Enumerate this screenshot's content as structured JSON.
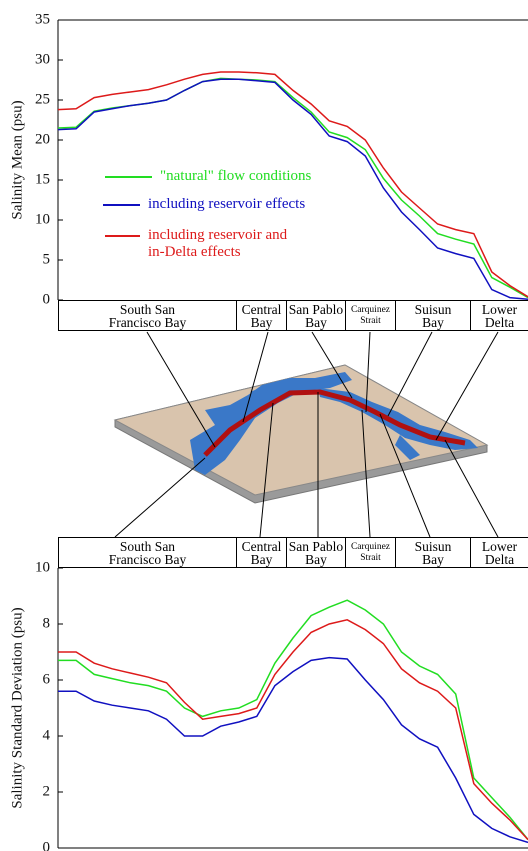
{
  "chart_data": [
    {
      "type": "line",
      "y_label": "Salinity Mean (psu)",
      "categories": [
        null,
        null,
        null,
        null,
        null,
        null,
        null,
        null,
        null,
        null,
        null,
        null,
        null,
        null,
        null,
        null,
        null,
        null,
        null,
        null,
        null,
        null,
        null,
        null,
        null,
        null,
        null
      ],
      "ylim": [
        0,
        35
      ],
      "yticks": [
        0,
        5,
        10,
        15,
        20,
        25,
        30,
        35
      ],
      "series": [
        {
          "name": "\"natural\" flow conditions",
          "color": "#22dd22",
          "values": [
            21.5,
            21.6,
            23.6,
            24.0,
            24.3,
            24.6,
            25.0,
            26.2,
            27.3,
            27.7,
            27.6,
            27.5,
            27.3,
            25.3,
            23.5,
            21.0,
            20.3,
            18.8,
            15.2,
            12.5,
            10.5,
            8.3,
            7.6,
            7.0,
            2.8,
            1.6,
            0.3
          ]
        },
        {
          "name": "including reservoir effects",
          "color": "#1010c0",
          "values": [
            21.3,
            21.4,
            23.5,
            23.9,
            24.3,
            24.6,
            25.0,
            26.2,
            27.3,
            27.6,
            27.6,
            27.4,
            27.2,
            25.0,
            23.2,
            20.5,
            19.8,
            18.0,
            14.0,
            11.0,
            8.8,
            6.5,
            5.8,
            5.2,
            1.3,
            0.3,
            0.1
          ]
        },
        {
          "name": "including reservoir and in-Delta effects",
          "color": "#dd1a1a",
          "values": [
            23.8,
            23.9,
            25.3,
            25.7,
            26.0,
            26.3,
            26.9,
            27.6,
            28.2,
            28.5,
            28.5,
            28.4,
            28.2,
            26.2,
            24.5,
            22.4,
            21.7,
            20.0,
            16.5,
            13.5,
            11.5,
            9.5,
            8.8,
            8.3,
            3.5,
            1.8,
            0.4
          ]
        }
      ]
    },
    {
      "type": "line",
      "y_label": "Salinity Standard Deviation (psu)",
      "categories": [
        null,
        null,
        null,
        null,
        null,
        null,
        null,
        null,
        null,
        null,
        null,
        null,
        null,
        null,
        null,
        null,
        null,
        null,
        null,
        null,
        null,
        null,
        null,
        null,
        null,
        null,
        null
      ],
      "ylim": [
        0,
        10
      ],
      "yticks": [
        0,
        2,
        4,
        6,
        8,
        10
      ],
      "series": [
        {
          "color": "#22dd22",
          "values": [
            6.7,
            6.7,
            6.2,
            6.05,
            5.9,
            5.8,
            5.6,
            5.0,
            4.7,
            4.9,
            5.0,
            5.3,
            6.6,
            7.5,
            8.3,
            8.6,
            8.85,
            8.5,
            8.0,
            7.0,
            6.5,
            6.2,
            5.5,
            2.5,
            1.8,
            1.1,
            0.3
          ]
        },
        {
          "color": "#1010c0",
          "values": [
            5.6,
            5.6,
            5.25,
            5.1,
            5.0,
            4.9,
            4.6,
            4.0,
            4.0,
            4.35,
            4.5,
            4.7,
            5.8,
            6.3,
            6.7,
            6.8,
            6.75,
            6.0,
            5.3,
            4.4,
            3.9,
            3.6,
            2.5,
            1.2,
            0.7,
            0.4,
            0.2
          ]
        },
        {
          "color": "#dd1a1a",
          "values": [
            7.0,
            7.0,
            6.6,
            6.4,
            6.25,
            6.1,
            5.9,
            5.2,
            4.6,
            4.7,
            4.8,
            5.0,
            6.2,
            7.0,
            7.7,
            8.0,
            8.15,
            7.8,
            7.3,
            6.4,
            5.9,
            5.6,
            5.0,
            2.3,
            1.6,
            1.0,
            0.3
          ]
        }
      ]
    }
  ],
  "regions": [
    "South San Francisco Bay",
    "Central Bay",
    "San Pablo Bay",
    "Carquinez Strait",
    "Suisun Bay",
    "Lower Delta"
  ]
}
